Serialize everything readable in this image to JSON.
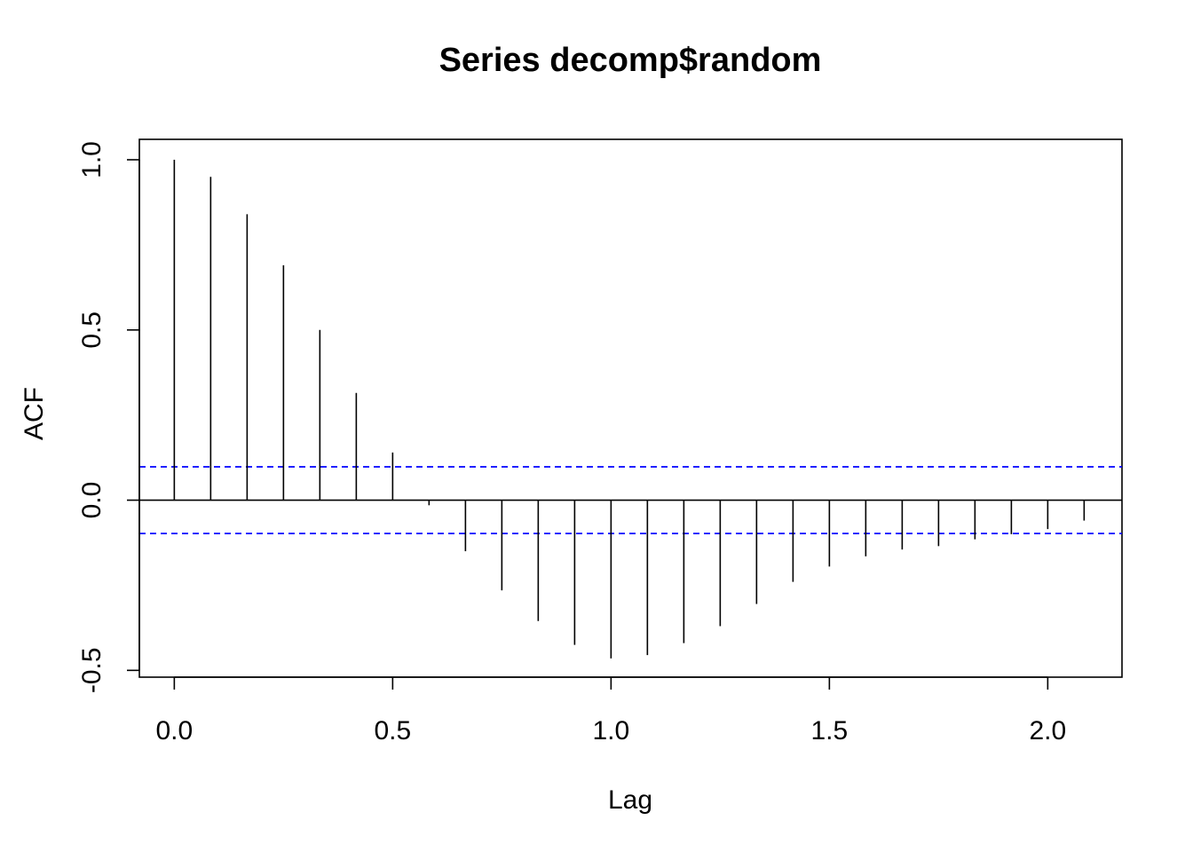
{
  "chart_data": {
    "type": "bar",
    "title": "Series  decomp$random",
    "xlabel": "Lag",
    "ylabel": "ACF",
    "x_ticks": [
      "0.0",
      "0.5",
      "1.0",
      "1.5",
      "2.0"
    ],
    "y_ticks": [
      "-0.5",
      "0.0",
      "0.5",
      "1.0"
    ],
    "xlim": [
      -0.08,
      2.17
    ],
    "ylim": [
      -0.52,
      1.06
    ],
    "confidence_bound": 0.098,
    "ci_line_color": "#0000ff",
    "bar_color": "#000000",
    "grid": false,
    "x": [
      0.0,
      0.0833,
      0.1667,
      0.25,
      0.3333,
      0.4167,
      0.5,
      0.5833,
      0.6667,
      0.75,
      0.8333,
      0.9167,
      1.0,
      1.0833,
      1.1667,
      1.25,
      1.3333,
      1.4167,
      1.5,
      1.5833,
      1.6667,
      1.75,
      1.8333,
      1.9167,
      2.0,
      2.0833
    ],
    "values": [
      1.0,
      0.95,
      0.84,
      0.69,
      0.5,
      0.315,
      0.14,
      -0.015,
      -0.15,
      -0.265,
      -0.355,
      -0.425,
      -0.465,
      -0.455,
      -0.42,
      -0.37,
      -0.305,
      -0.24,
      -0.195,
      -0.165,
      -0.145,
      -0.135,
      -0.115,
      -0.1,
      -0.085,
      -0.06
    ]
  }
}
